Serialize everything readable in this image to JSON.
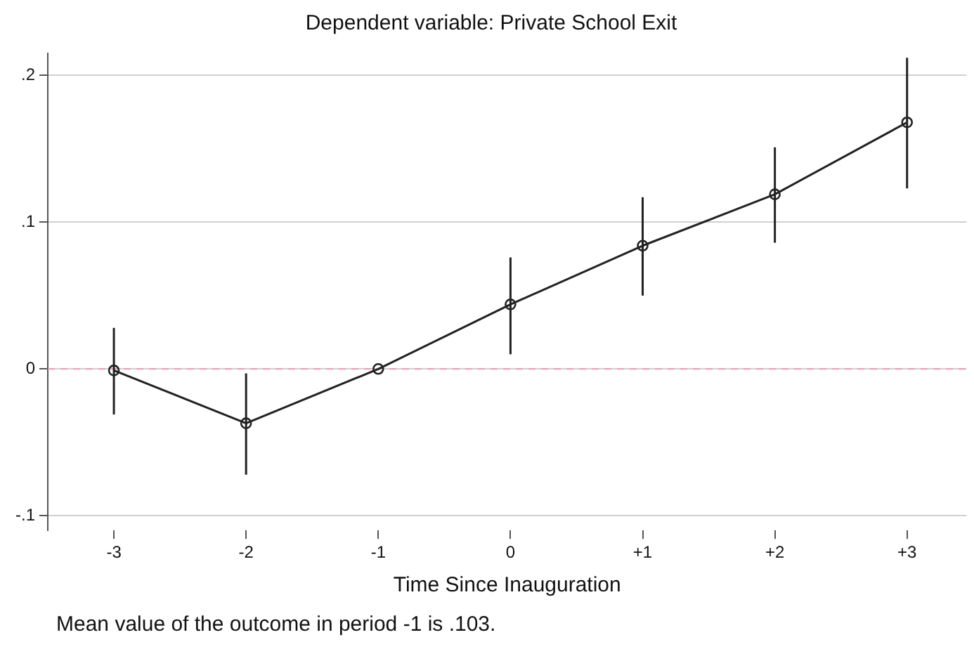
{
  "chart_data": {
    "type": "line",
    "title": "Dependent variable: Private School Exit",
    "xlabel": "Time Since Inauguration",
    "x": [
      -3,
      -2,
      -1,
      0,
      1,
      2,
      3
    ],
    "series": [
      {
        "color": "#222222",
        "values": [
          -0.001,
          -0.037,
          0,
          0.044,
          0.084,
          0.119,
          0.168
        ],
        "errors": [
          [
            -0.031,
            0.028
          ],
          [
            -0.072,
            -0.003
          ],
          null,
          [
            0.01,
            0.076
          ],
          [
            0.05,
            0.117
          ],
          [
            0.086,
            0.151
          ],
          [
            0.123,
            0.212
          ]
        ]
      }
    ],
    "xlim": [
      -3.5,
      3.45
    ],
    "xticks": [
      -3,
      -2,
      -1,
      0,
      {
        "value": 1,
        "label": "+1"
      },
      {
        "value": 2,
        "label": "+2"
      },
      {
        "value": 3,
        "label": "+3"
      }
    ],
    "ylim": [
      -0.11,
      0.215
    ],
    "yticks": [
      {
        "value": -0.1,
        "label": "-.1"
      },
      0,
      {
        "value": 0.1,
        "label": ".1"
      },
      {
        "value": 0.2,
        "label": ".2"
      }
    ],
    "grid": "y",
    "marker": "circle",
    "line_style": "solid",
    "legend": false,
    "ref_lines": [
      {
        "axis": "y",
        "value": 0,
        "color": "#e8a0b4",
        "line_style": "dashed"
      }
    ],
    "annotations": [
      "Mean value of the outcome in period -1 is .103."
    ]
  }
}
